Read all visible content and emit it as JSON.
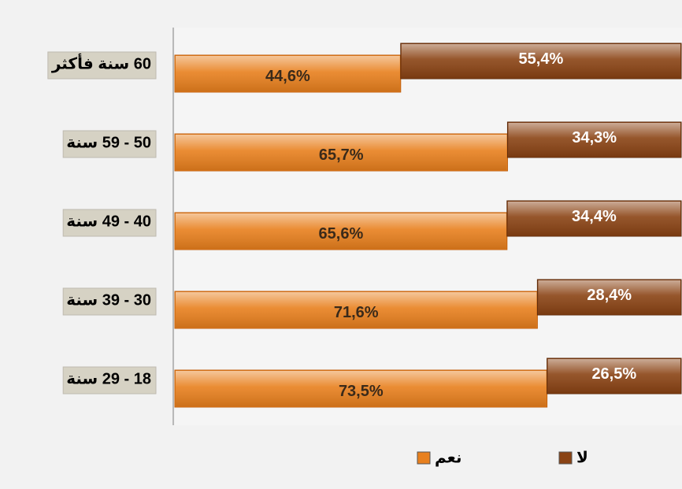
{
  "chart_data": {
    "type": "stacked-bar-horizontal",
    "categories": [
      "60 سنة فأكثر",
      "50 - 59 سنة",
      "40 - 49 سنة",
      "30 - 39 سنة",
      "18 - 29 سنة"
    ],
    "series": [
      {
        "name": "نعم",
        "color": "#e8801e",
        "values": [
          44.6,
          65.7,
          65.6,
          71.6,
          73.5
        ],
        "value_labels": [
          "44,6%",
          "65,7%",
          "65,6%",
          "71,6%",
          "73,5%"
        ]
      },
      {
        "name": "لا",
        "color": "#8a4314",
        "values": [
          55.4,
          34.3,
          34.4,
          28.4,
          26.5
        ],
        "value_labels": [
          "55,4%",
          "34,3%",
          "34,4%",
          "28,4%",
          "26,5%"
        ]
      }
    ],
    "legend": "bottom"
  }
}
